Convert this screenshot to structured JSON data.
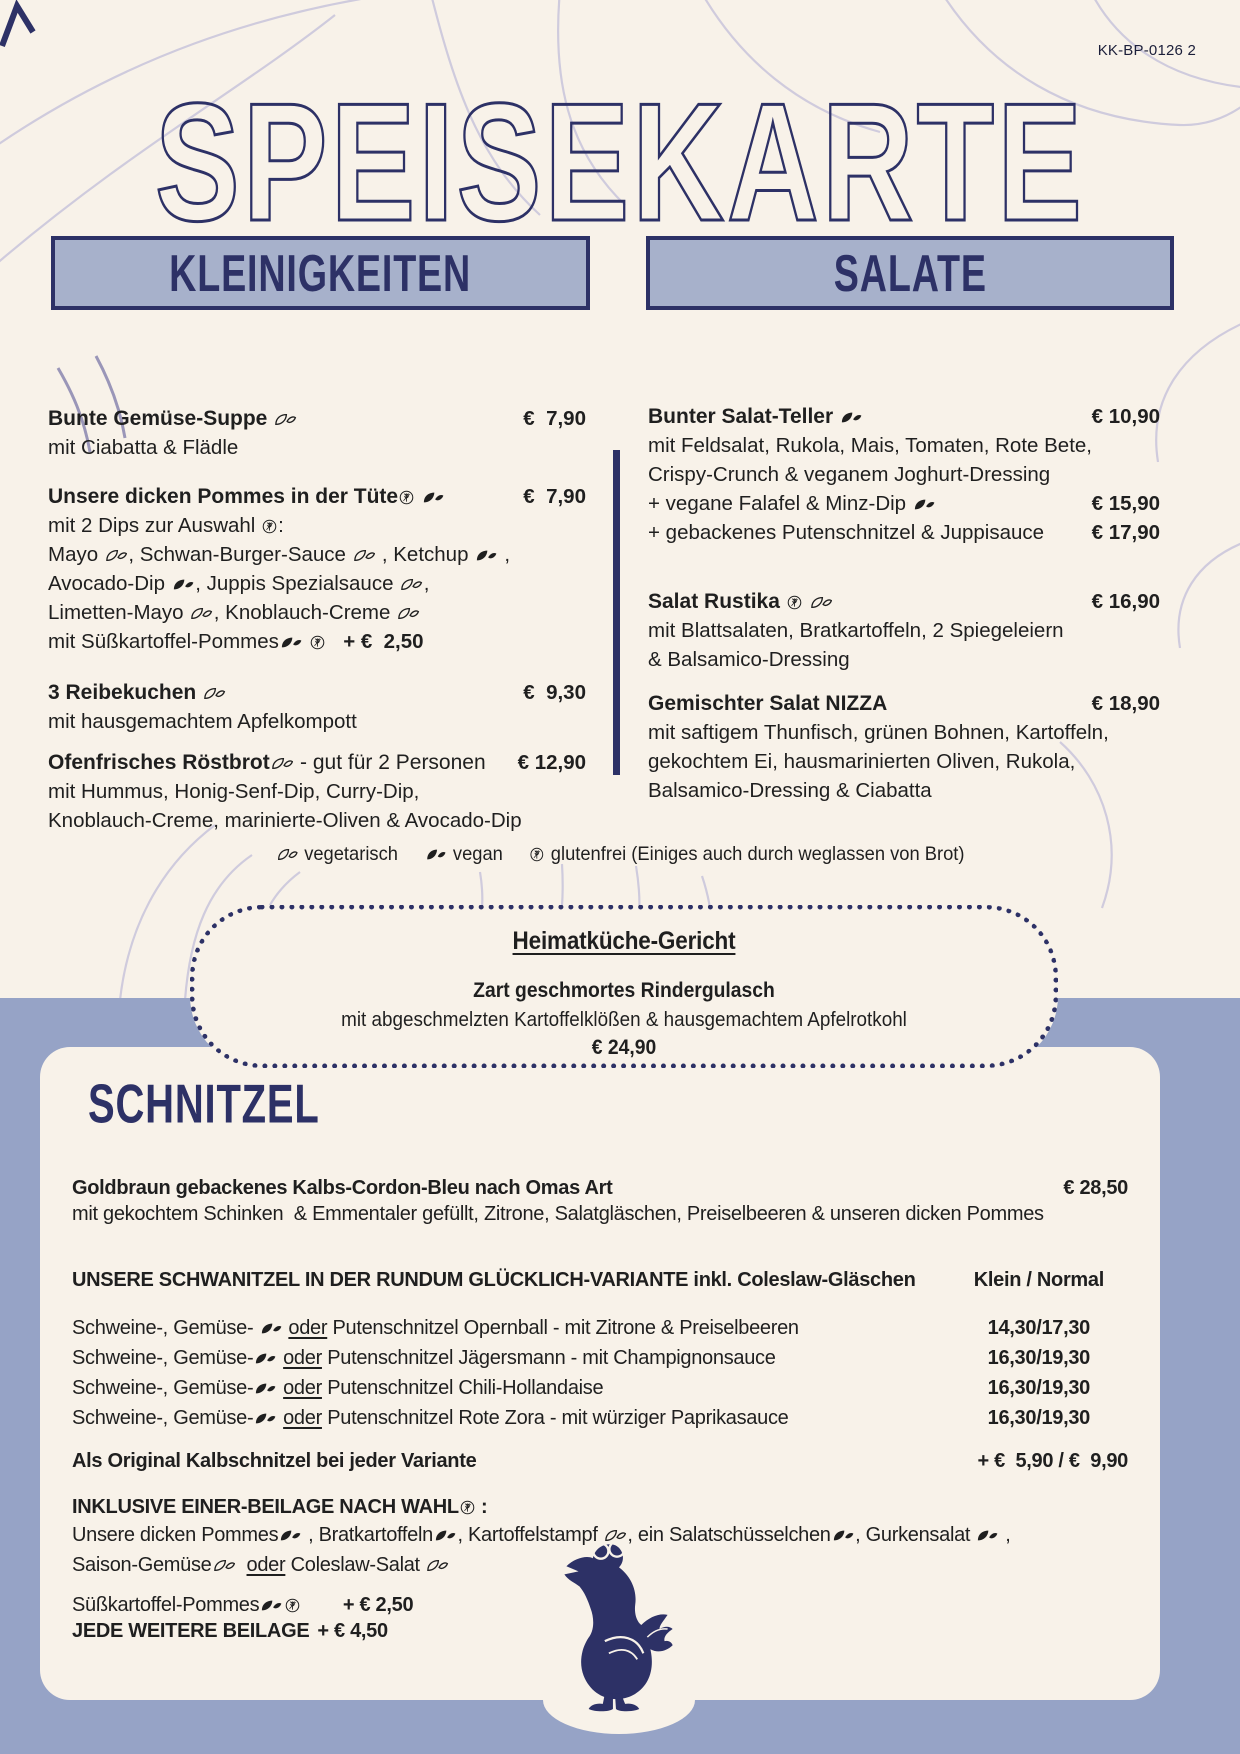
{
  "meta": {
    "code": "KK-BP-0126 2",
    "title": "SPEISEKARTE"
  },
  "colors": {
    "navy": "#2d3166",
    "cream": "#f8f2e9",
    "section_box_fill": "#a7b1cb",
    "bottom_band": "#96a3c6",
    "ink": "#1f1f1f",
    "leaf_line_art": "#cbc7dc"
  },
  "icons": {
    "vegetarisch": "outline-leaf-icon",
    "vegan": "filled-leaf-icon",
    "glutenfrei": "wheat-in-circle-icon",
    "mascot": "goose-with-glasses-silhouette"
  },
  "sections": {
    "kleinigkeiten": {
      "title": "KLEINIGKEITEN",
      "items": [
        {
          "name": "Bunte Gemüse-Suppe {veg}",
          "price": "€  7,90",
          "lines": [
            {
              "t": "mit Ciabatta & Flädle",
              "p": ""
            }
          ]
        },
        {
          "name": "Unsere dicken Pommes in der Tüte{gf} {vegan}",
          "price": "€  7,90",
          "lines": [
            {
              "t": "mit 2 Dips zur Auswahl {gf}:",
              "p": ""
            },
            {
              "t": "Mayo {veg}, Schwan-Burger-Sauce {veg} , Ketchup {vegan} ,",
              "p": ""
            },
            {
              "t": "Avocado-Dip {vegan}, Juppis Spezialsauce {veg},",
              "p": ""
            },
            {
              "t": "Limetten-Mayo {veg}, Knoblauch-Creme {veg}",
              "p": ""
            },
            {
              "t": "mit Süßkartoffel-Pommes{vegan} {gf}   {b}+ €  2,50{/b}",
              "p": ""
            }
          ]
        },
        {
          "name": "3 Reibekuchen {veg}",
          "price": "€  9,30",
          "lines": [
            {
              "t": "mit hausgemachtem Apfelkompott",
              "p": ""
            }
          ]
        },
        {
          "name": "Ofenfrisches Röstbrot{veg} {r}- gut für 2 Personen{/r}",
          "price": "€ 12,90",
          "lines": [
            {
              "t": "mit Hummus, Honig-Senf-Dip, Curry-Dip,",
              "p": ""
            },
            {
              "t": "Knoblauch-Creme, marinierte-Oliven & Avocado-Dip",
              "p": ""
            }
          ]
        }
      ]
    },
    "salate": {
      "title": "SALATE",
      "items": [
        {
          "name": "Bunter Salat-Teller {vegan}",
          "price": "€ 10,90",
          "lines": [
            {
              "t": "mit Feldsalat, Rukola, Mais, Tomaten, Rote Bete,",
              "p": ""
            },
            {
              "t": "Crispy-Crunch & veganem Joghurt-Dressing",
              "p": ""
            },
            {
              "t": "+ vegane Falafel & Minz-Dip {vegan}",
              "p": "€ 15,90"
            },
            {
              "t": "+ gebackenes Putenschnitzel & Juppisauce",
              "p": "€ 17,90"
            }
          ]
        },
        {
          "name": "Salat Rustika {gf} {veg}",
          "price": "€ 16,90",
          "lines": [
            {
              "t": "mit Blattsalaten, Bratkartoffeln, 2 Spiegeleiern",
              "p": ""
            },
            {
              "t": "& Balsamico-Dressing",
              "p": ""
            }
          ]
        },
        {
          "name": "Gemischter Salat NIZZA",
          "price": "€ 18,90",
          "lines": [
            {
              "t": "mit saftigem Thunfisch, grünen Bohnen, Kartoffeln,",
              "p": ""
            },
            {
              "t": "gekochtem Ei, hausmarinierten Oliven, Rukola,",
              "p": ""
            },
            {
              "t": "Balsamico-Dressing & Ciabatta",
              "p": ""
            }
          ]
        }
      ]
    }
  },
  "legend": {
    "items": [
      {
        "icon": "{veg}",
        "label": "vegetarisch"
      },
      {
        "icon": "{vegan}",
        "label": "vegan"
      },
      {
        "icon": "{gf}",
        "label": "glutenfrei (Einiges auch durch weglassen von Brot)"
      }
    ]
  },
  "heimat": {
    "title": "Heimatküche-Gericht",
    "dish": "Zart geschmortes Rindergulasch",
    "desc": "mit abgeschmelzten Kartoffelklößen & hausgemachtem Apfelrotkohl",
    "price": "€ 24,90"
  },
  "schnitzel": {
    "title": "SCHNITZEL",
    "cordon": {
      "name": "Goldbraun gebackenes Kalbs-Cordon-Bleu nach Omas Art",
      "price": "€ 28,50",
      "desc": "mit gekochtem Schinken  & Emmentaler gefüllt, Zitrone, Salatgläschen, Preiselbeeren & unseren dicken Pommes"
    },
    "variants_header": {
      "t": "UNSERE SCHWANITZEL IN DER RUNDUM GLÜCKLICH-VARIANTE inkl. Coleslaw-Gläschen",
      "p": "Klein / Normal"
    },
    "variants": [
      {
        "t": "Schweine-, Gemüse- {vegan} {u}oder{/u} Putenschnitzel Opernball - mit Zitrone & Preiselbeeren",
        "p": "14,30/17,30"
      },
      {
        "t": "Schweine-, Gemüse-{vegan} {u}oder{/u} Putenschnitzel Jägersmann - mit Champignonsauce",
        "p": "16,30/19,30"
      },
      {
        "t": "Schweine-, Gemüse-{vegan} {u}oder{/u} Putenschnitzel Chili-Hollandaise",
        "p": "16,30/19,30"
      },
      {
        "t": "Schweine-, Gemüse-{vegan} {u}oder{/u} Putenschnitzel Rote Zora - mit würziger Paprikasauce",
        "p": "16,30/19,30"
      }
    ],
    "kalb": {
      "t": "Als Original Kalbschnitzel bei jeder Variante",
      "p": "+ €  5,90 / €  9,90"
    },
    "beilage": {
      "header": "INKLUSIVE EINER-BEILAGE NACH WAHL{gf} :",
      "lines": [
        "Unsere dicken Pommes{vegan} , Bratkartoffeln{vegan}, Kartoffelstampf {veg}, ein Salatschüsselchen{vegan}, Gurkensalat {vegan} ,",
        "Saison-Gemüse{veg}  {u}oder{/u} Coleslaw-Salat {veg}"
      ]
    },
    "extras": {
      "suess_t": "Süßkartoffel-Pommes{vegan}{gf}",
      "suess_p": "+ € 2,50",
      "jede_t": "JEDE WEITERE BEILAGE",
      "jede_p": "+ € 4,50"
    }
  }
}
